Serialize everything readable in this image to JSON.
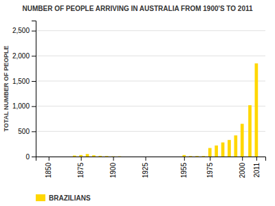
{
  "chart_data": {
    "type": "bar",
    "title": "NUMBER OF PEOPLE ARRIVING IN AUSTRALIA FROM 1900'S TO 2011",
    "y_label": "TOTAL NUMBER OF PEOPLE",
    "x": [
      1850,
      1870,
      1875,
      1880,
      1885,
      1890,
      1895,
      1900,
      1905,
      1955,
      1960,
      1965,
      1970,
      1975,
      1980,
      1985,
      1990,
      1995,
      2000,
      2006,
      2011
    ],
    "series": [
      {
        "name": "BRAZILIANS",
        "color": "#FFD700",
        "values": [
          0,
          20,
          30,
          50,
          25,
          15,
          10,
          5,
          5,
          30,
          10,
          10,
          10,
          170,
          220,
          280,
          330,
          420,
          650,
          1020,
          1850
        ]
      }
    ],
    "xlim": [
      1840,
      2018
    ],
    "xticks": [
      1850,
      1875,
      1900,
      1925,
      1955,
      1975,
      2000,
      2011
    ],
    "ylim": [
      0,
      2700
    ],
    "yticks": [
      0,
      500,
      {
        "value": 1000,
        "label": "1,000"
      },
      {
        "value": 1500,
        "label": "1,500"
      },
      {
        "value": 2000,
        "label": "2,000"
      },
      {
        "value": 2500,
        "label": "2,500"
      }
    ],
    "grid": true,
    "legend": "bottom"
  }
}
